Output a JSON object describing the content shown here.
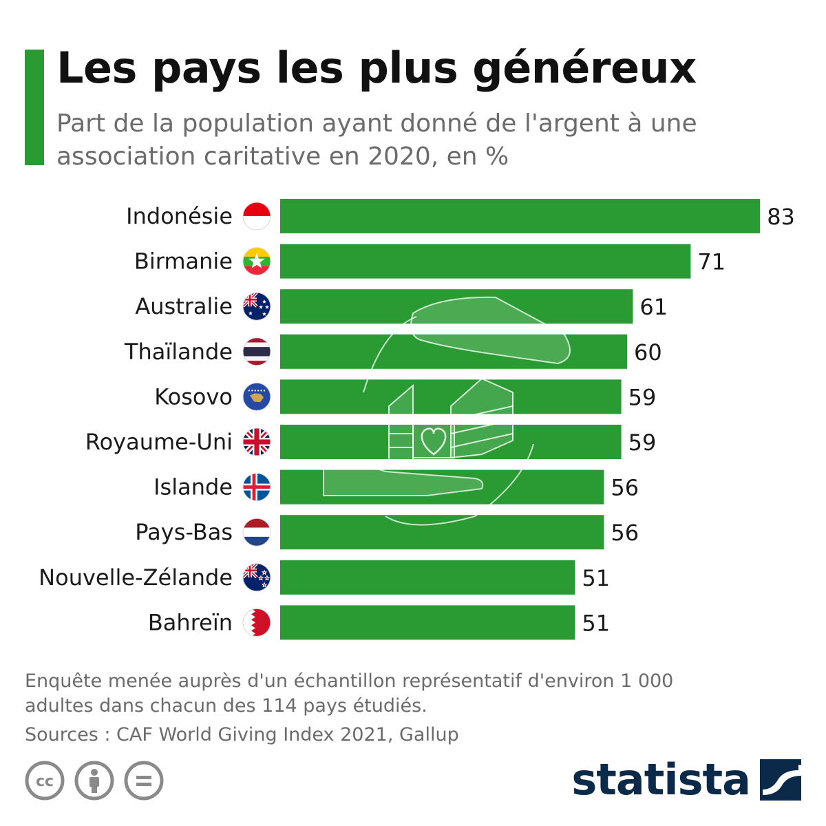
{
  "header": {
    "title": "Les pays les plus généreux",
    "subtitle": "Part de la population ayant donné de l'argent à une association caritative en 2020, en %"
  },
  "colors": {
    "accent": "#2a9a33",
    "brand": "#0b2a4a",
    "muted": "#6b6b6b"
  },
  "chart_data": {
    "type": "bar",
    "orientation": "horizontal",
    "categories": [
      "Indonésie",
      "Birmanie",
      "Australie",
      "Thaïlande",
      "Kosovo",
      "Royaume-Uni",
      "Islande",
      "Pays-Bas",
      "Nouvelle-Zélande",
      "Bahreïn"
    ],
    "values": [
      83,
      71,
      61,
      60,
      59,
      59,
      56,
      56,
      51,
      51
    ],
    "flags": [
      "indonesia-flag-icon",
      "myanmar-flag-icon",
      "australia-flag-icon",
      "thailand-flag-icon",
      "kosovo-flag-icon",
      "uk-flag-icon",
      "iceland-flag-icon",
      "netherlands-flag-icon",
      "new-zealand-flag-icon",
      "bahrain-flag-icon"
    ],
    "bar_color": "#2a9a33",
    "data_labels": true,
    "grid": false,
    "background_icon": "hands-holding-house-heart-icon"
  },
  "footer": {
    "note": "Enquête menée auprès d'un échantillon représentatif d'environ 1 000 adultes dans chacun des 114 pays étudiés.",
    "sources": "Sources : CAF World Giving Index 2021, Gallup",
    "license_icons": [
      "cc-icon",
      "attribution-icon",
      "no-derivatives-icon"
    ],
    "brand": "statista"
  }
}
